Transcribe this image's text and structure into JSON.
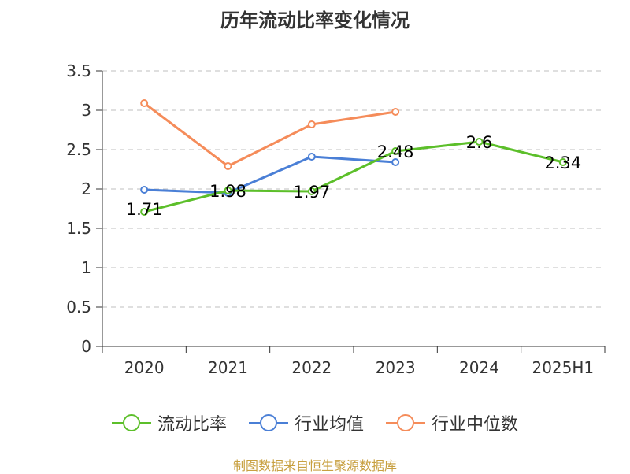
{
  "title": "历年流动比率变化情况",
  "source": "制图数据来自恒生聚源数据库",
  "chart_data": {
    "type": "line",
    "title": "历年流动比率变化情况",
    "categories": [
      "2020",
      "2021",
      "2022",
      "2023",
      "2024",
      "2025H1"
    ],
    "ylim": [
      0,
      3.5
    ],
    "yticks": [
      "0",
      "0.5",
      "1",
      "1.5",
      "2",
      "2.5",
      "3",
      "3.5"
    ],
    "grid": true,
    "legend_position": "bottom",
    "series": [
      {
        "name": "流动比率",
        "color": "#5cbf2a",
        "values": [
          1.71,
          1.98,
          1.97,
          2.48,
          2.6,
          2.34
        ],
        "labels": [
          "1.71",
          "1.98",
          "1.97",
          "2.48",
          "2.6",
          "2.34"
        ]
      },
      {
        "name": "行业均值",
        "color": "#4a7fd6",
        "values": [
          1.99,
          1.95,
          2.41,
          2.34,
          null,
          null
        ]
      },
      {
        "name": "行业中位数",
        "color": "#f58c5a",
        "values": [
          3.09,
          2.29,
          2.82,
          2.98,
          null,
          null
        ]
      }
    ]
  }
}
